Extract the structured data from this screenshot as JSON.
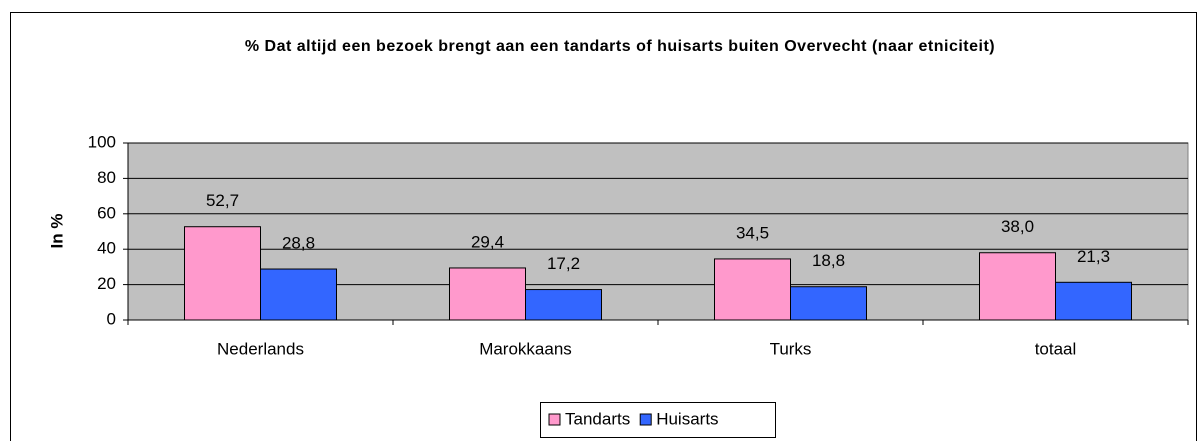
{
  "chart_data": {
    "type": "bar",
    "title": "% Dat altijd een bezoek brengt aan een tandarts of huisarts buiten Overvecht (naar etniciteit)",
    "y_label": "In %",
    "categories": [
      "Nederlands",
      "Marokkaans",
      "Turks",
      "totaal"
    ],
    "series": [
      {
        "name": "Tandarts",
        "color": "#ff99cc",
        "values": [
          52.7,
          29.4,
          34.5,
          38.0
        ],
        "value_labels": [
          "52,7",
          "29,4",
          "34,5",
          "38,0"
        ]
      },
      {
        "name": "Huisarts",
        "color": "#3366ff",
        "values": [
          28.8,
          17.2,
          18.8,
          21.3
        ],
        "value_labels": [
          "28,8",
          "17,2",
          "18,8",
          "21,3"
        ]
      }
    ],
    "ylim": [
      0,
      100
    ],
    "yticks": [
      0,
      20,
      40,
      60,
      80,
      100
    ],
    "grid": true,
    "legend": "bottom"
  }
}
